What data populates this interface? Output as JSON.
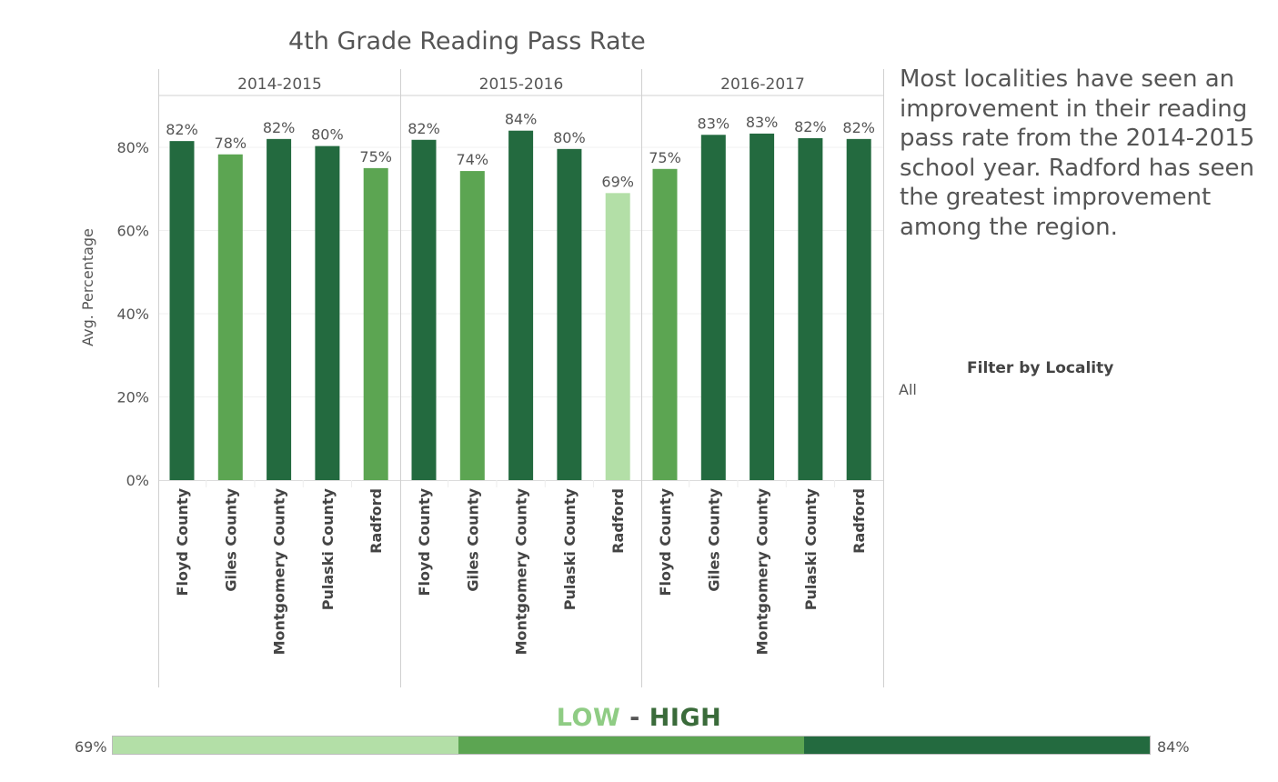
{
  "title": "4th Grade Reading Pass Rate",
  "annotation": "Most localities have seen an improvement in their reading pass rate from the 2014-2015 school year. Radford has seen the greatest improvement among the region.",
  "filter": {
    "title": "Filter by Locality",
    "value": "All"
  },
  "legend": {
    "low_label": "LOW",
    "separator": "-",
    "high_label": "HIGH",
    "min_label": "69%",
    "max_label": "84%",
    "colors": [
      "#b3dfa7",
      "#5ca552",
      "#236a3f"
    ]
  },
  "chart_data": {
    "type": "bar",
    "title": "4th Grade Reading Pass Rate",
    "ylabel": "Avg. Percentage",
    "ylim": [
      0,
      100
    ],
    "yticks": [
      "0%",
      "20%",
      "40%",
      "60%",
      "80%"
    ],
    "ytick_values": [
      0,
      20,
      40,
      60,
      80
    ],
    "grid": true,
    "categories": [
      "Floyd County",
      "Giles County",
      "Montgomery County",
      "Pulaski County",
      "Radford"
    ],
    "panels": [
      {
        "name": "2014-2015",
        "values": [
          81.5,
          78.3,
          82.0,
          80.3,
          75.0
        ],
        "labels": [
          "82%",
          "78%",
          "82%",
          "80%",
          "75%"
        ],
        "colors": [
          "#236a3f",
          "#5ca552",
          "#236a3f",
          "#236a3f",
          "#5ca552"
        ]
      },
      {
        "name": "2015-2016",
        "values": [
          81.8,
          74.3,
          84.0,
          79.6,
          69.0
        ],
        "labels": [
          "82%",
          "74%",
          "84%",
          "80%",
          "69%"
        ],
        "colors": [
          "#236a3f",
          "#5ca552",
          "#236a3f",
          "#236a3f",
          "#b3dfa7"
        ]
      },
      {
        "name": "2016-2017",
        "values": [
          74.8,
          83.0,
          83.3,
          82.2,
          82.0
        ],
        "labels": [
          "75%",
          "83%",
          "83%",
          "82%",
          "82%"
        ],
        "colors": [
          "#5ca552",
          "#236a3f",
          "#236a3f",
          "#236a3f",
          "#236a3f"
        ]
      }
    ]
  }
}
